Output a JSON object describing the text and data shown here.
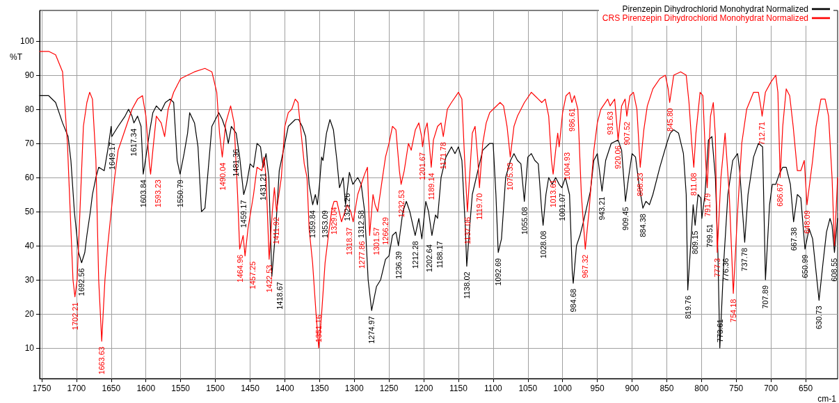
{
  "chart_data": {
    "type": "line",
    "xlabel": "cm-1",
    "ylabel": "%T",
    "legend": "top right",
    "grid": true,
    "marker": "none",
    "line_style": "solid",
    "xlim": [
      1753,
      604
    ],
    "ylim": [
      1,
      109
    ],
    "xticks": [
      1750,
      1700,
      1650,
      1600,
      1550,
      1500,
      1450,
      1400,
      1350,
      1300,
      1250,
      1200,
      1150,
      1100,
      1050,
      1000,
      950,
      900,
      850,
      800,
      750,
      700,
      650
    ],
    "yticks": [
      10,
      20,
      30,
      40,
      50,
      60,
      70,
      80,
      90,
      100
    ],
    "series": [
      {
        "name": "Pirenzepin Dihydrochlorid Monohydrat Normalized",
        "color": "#000000",
        "x": [
          1753,
          1740,
          1730,
          1720,
          1712,
          1708,
          1703,
          1700,
          1697,
          1692.56,
          1688,
          1685,
          1680,
          1677,
          1672,
          1668,
          1660,
          1655,
          1650,
          1649.17,
          1640,
          1630,
          1625,
          1620,
          1617.34,
          1612,
          1607,
          1603.84,
          1600,
          1595,
          1590,
          1585,
          1578,
          1572,
          1565,
          1560,
          1555,
          1550.79,
          1545,
          1540,
          1537,
          1530,
          1525,
          1520,
          1515,
          1510,
          1505,
          1495,
          1490,
          1485,
          1481.36,
          1477,
          1470,
          1465,
          1459.17,
          1455,
          1450,
          1445,
          1440,
          1435,
          1431.21,
          1427,
          1423,
          1418.67,
          1413,
          1408,
          1400,
          1395,
          1385,
          1380,
          1375,
          1370,
          1365,
          1359.84,
          1356,
          1353.09,
          1350,
          1347,
          1345,
          1340,
          1335,
          1330,
          1325,
          1321.26,
          1316,
          1312.58,
          1307,
          1302,
          1295,
          1290,
          1285,
          1280,
          1274.97,
          1268,
          1262,
          1255,
          1250,
          1245,
          1240,
          1236.39,
          1230,
          1225,
          1220,
          1212.28,
          1207,
          1202.64,
          1197,
          1193,
          1188.17,
          1183,
          1180,
          1175,
          1168,
          1160,
          1155,
          1150,
          1145,
          1140,
          1138.02,
          1134,
          1130,
          1122,
          1115,
          1105,
          1100,
          1096,
          1092.69,
          1088,
          1082,
          1075,
          1070,
          1065,
          1060,
          1055.08,
          1050,
          1045,
          1040,
          1035,
          1030,
          1028.08,
          1024,
          1020,
          1015,
          1010,
          1005,
          1001.07,
          996,
          990,
          986,
          984.68,
          980,
          975,
          970,
          960,
          955,
          950,
          943.21,
          938,
          930,
          920,
          915,
          909.45,
          905,
          900,
          895,
          890,
          884.38,
          880,
          875,
          870,
          860,
          850,
          845,
          840,
          833,
          826,
          822,
          819.76,
          815,
          812,
          809.15,
          805,
          801,
          799.51,
          795,
          790,
          785,
          780,
          776.36,
          773.61,
          768,
          762,
          755,
          748,
          745,
          737.78,
          733,
          725,
          718,
          712,
          707.89,
          702,
          698,
          693,
          688,
          683,
          678,
          672,
          667.38,
          662,
          657,
          650.99,
          645,
          640,
          630.73,
          625,
          620,
          615,
          612,
          608.55,
          604
        ],
        "values": [
          84,
          84,
          82,
          76,
          72,
          65,
          50,
          44,
          38,
          35,
          38,
          43,
          50,
          55,
          60,
          63,
          62,
          68,
          75,
          72,
          75,
          78,
          80,
          78,
          76,
          78,
          75,
          61,
          66,
          73,
          79,
          81,
          79.5,
          82,
          83,
          82,
          65,
          61,
          67,
          73,
          79,
          76,
          69,
          50,
          51,
          63,
          75,
          79,
          77,
          74,
          70,
          75,
          73,
          66,
          55,
          58,
          64,
          63,
          70,
          69,
          63,
          67,
          60,
          31,
          45,
          62,
          70,
          75,
          77,
          77,
          75,
          72,
          58,
          52,
          55,
          52,
          58,
          66,
          65,
          73,
          77,
          74,
          65,
          57,
          60,
          52,
          61.5,
          58,
          60,
          58,
          50,
          30,
          21,
          28,
          30,
          36,
          37,
          43,
          44,
          40,
          50,
          53,
          50,
          43,
          48,
          42,
          53,
          50,
          43,
          49,
          48,
          60,
          66,
          69,
          67,
          69,
          65,
          45,
          34,
          45,
          55,
          62,
          68,
          70,
          70,
          55,
          38,
          42,
          60,
          65,
          67,
          65,
          64,
          53,
          66,
          67,
          65,
          64,
          50,
          46,
          55,
          60,
          58,
          60,
          58,
          57,
          60,
          55,
          32,
          29,
          40,
          43,
          47,
          56,
          65,
          67,
          56,
          65,
          70,
          71,
          68,
          53,
          60,
          67,
          66,
          58,
          51,
          53,
          52,
          55,
          63,
          70,
          73,
          74,
          73,
          67,
          55,
          27,
          42,
          52,
          46,
          55,
          54,
          48,
          55,
          71,
          72,
          60,
          38,
          10,
          35,
          55,
          65,
          67,
          62,
          41,
          55,
          66,
          70,
          69,
          30,
          52,
          58,
          58,
          61,
          63,
          63,
          58,
          47,
          55,
          54,
          39,
          45,
          42,
          24,
          35,
          44,
          48,
          46,
          38,
          48
        ]
      },
      {
        "name": "CRS Pirenzepin Dihydrochlorid Monohydrat Normalized",
        "color": "#ff0000",
        "x": [
          1753,
          1740,
          1730,
          1720,
          1713,
          1708,
          1705,
          1702.21,
          1699,
          1695,
          1690,
          1685,
          1681,
          1677,
          1672,
          1668,
          1663.63,
          1659,
          1655,
          1650,
          1645,
          1640,
          1630,
          1620,
          1612,
          1605,
          1600,
          1595,
          1593.23,
          1590,
          1585,
          1578,
          1573,
          1568,
          1560,
          1550,
          1540,
          1530,
          1515,
          1505,
          1498,
          1494,
          1490.04,
          1485,
          1478,
          1473,
          1468,
          1464.96,
          1460,
          1457.25,
          1453,
          1445,
          1440,
          1433,
          1430,
          1427,
          1422.53,
          1418,
          1415,
          1411.92,
          1405,
          1400,
          1395,
          1390,
          1385,
          1381,
          1375,
          1372,
          1368,
          1365,
          1360,
          1355,
          1351.16,
          1347,
          1342,
          1336,
          1332,
          1329.04,
          1325,
          1318.37,
          1310,
          1305,
          1301.57,
          1295,
          1285,
          1281,
          1277.86,
          1273,
          1270,
          1266.29,
          1260,
          1255,
          1250,
          1245,
          1240,
          1235,
          1232.53,
          1228,
          1222,
          1218,
          1212,
          1207,
          1203,
          1201.67,
          1198,
          1195,
          1192,
          1189.14,
          1186,
          1180,
          1175,
          1171.78,
          1166,
          1160,
          1150,
          1145,
          1141,
          1137.06,
          1134,
          1130,
          1126,
          1122,
          1119.7,
          1115,
          1110,
          1105,
          1100,
          1090,
          1085,
          1080,
          1075.33,
          1070,
          1065,
          1055,
          1045,
          1040,
          1035,
          1030,
          1025,
          1020,
          1016,
          1013.61,
          1010,
          1007,
          1004.93,
          1000,
          995,
          990,
          986.61,
          983,
          978,
          973,
          967.32,
          962,
          955,
          950,
          945,
          935,
          931.63,
          925,
          920.06,
          915,
          910,
          907.52,
          903,
          898,
          893,
          888.23,
          883,
          878,
          870,
          860,
          852,
          848,
          845.8,
          840,
          830,
          822,
          818,
          814,
          811.08,
          808,
          802,
          798,
          794,
          791.79,
          787,
          783,
          780,
          777.3,
          772,
          766,
          760,
          754.18,
          748,
          742,
          735,
          725,
          718,
          714,
          712.71,
          708,
          700,
          693,
          690,
          686.67,
          683,
          678,
          673,
          668,
          662,
          657,
          652,
          648.09,
          645,
          640,
          635,
          628,
          622,
          617,
          612,
          608.55,
          604
        ],
        "values": [
          97,
          97,
          96,
          91,
          70,
          45,
          30,
          25,
          30,
          50,
          75,
          82,
          85,
          83,
          65,
          30,
          12,
          30,
          40,
          50,
          60,
          68,
          74,
          80,
          83,
          84,
          78,
          64,
          61,
          68,
          78,
          76,
          72,
          80,
          85,
          89,
          90,
          91,
          92,
          91,
          85,
          73,
          66,
          76,
          81,
          76,
          55,
          39,
          43,
          37,
          45,
          55,
          63,
          62,
          66,
          60,
          36,
          50,
          57,
          50,
          60,
          75,
          79,
          80,
          83,
          82,
          70,
          64,
          60,
          45,
          35,
          20,
          10,
          20,
          35,
          45,
          51,
          53,
          53,
          47,
          52,
          50,
          47,
          55,
          61,
          63,
          43,
          55,
          52,
          50,
          59,
          66,
          70,
          75,
          74,
          62,
          58,
          62,
          70,
          68,
          74,
          76,
          72,
          69,
          74,
          76,
          70,
          63,
          71,
          75,
          76,
          72,
          80,
          82,
          85,
          83,
          65,
          50,
          60,
          73,
          75,
          65,
          57,
          70,
          76,
          79,
          80,
          82,
          81,
          75,
          66,
          75,
          78,
          82,
          85,
          84,
          83,
          82,
          83,
          78,
          65,
          61,
          68,
          73,
          69,
          79,
          84,
          85,
          82,
          84,
          80,
          55,
          39,
          50,
          68,
          76,
          80,
          83,
          81,
          83,
          71,
          81,
          83,
          78,
          84,
          85,
          80,
          63,
          74,
          81,
          86,
          89,
          90,
          86,
          82,
          90,
          91,
          90,
          82,
          70,
          63,
          73,
          85,
          84,
          65,
          57,
          78,
          82,
          72,
          38,
          60,
          73,
          55,
          26,
          50,
          70,
          80,
          85,
          85,
          80,
          78,
          85,
          88,
          90,
          85,
          60,
          75,
          86,
          84,
          75,
          62,
          62,
          65,
          52,
          57,
          65,
          75,
          83,
          83,
          78,
          60,
          40,
          60
        ]
      }
    ],
    "annotations": [
      {
        "text": "1702.21",
        "x": 1702.21,
        "y": 25
      },
      {
        "text": "1692.56",
        "x": 1692.56,
        "y": 35
      },
      {
        "text": "1663.63",
        "x": 1663.63,
        "y": 12
      },
      {
        "text": "1649.17",
        "x": 1649.17,
        "y": 72
      },
      {
        "text": "1617.34",
        "x": 1617.34,
        "y": 76
      },
      {
        "text": "1603.84",
        "x": 1603.84,
        "y": 61
      },
      {
        "text": "1593.23",
        "x": 1593.23,
        "y": 61
      },
      {
        "text": "1550.79",
        "x": 1550.79,
        "y": 61
      },
      {
        "text": "1490.04",
        "x": 1490.04,
        "y": 66
      },
      {
        "text": "1481.36",
        "x": 1481.36,
        "y": 70
      },
      {
        "text": "1464.96",
        "x": 1464.96,
        "y": 39
      },
      {
        "text": "1459.17",
        "x": 1459.17,
        "y": 55
      },
      {
        "text": "1457.25",
        "x": 1457.25,
        "y": 37
      },
      {
        "text": "1431.21",
        "x": 1431.21,
        "y": 63
      },
      {
        "text": "1422.53",
        "x": 1422.53,
        "y": 36
      },
      {
        "text": "1418.67",
        "x": 1418.67,
        "y": 31
      },
      {
        "text": "1411.92",
        "x": 1411.92,
        "y": 50
      },
      {
        "text": "1359.84",
        "x": 1359.84,
        "y": 52
      },
      {
        "text": "1353.09",
        "x": 1353.09,
        "y": 52
      },
      {
        "text": "1351.16",
        "x": 1351.16,
        "y": 10
      },
      {
        "text": "1329.04",
        "x": 1329.04,
        "y": 53
      },
      {
        "text": "1321.26",
        "x": 1321.26,
        "y": 57
      },
      {
        "text": "1318.37",
        "x": 1318.37,
        "y": 47
      },
      {
        "text": "1312.58",
        "x": 1312.58,
        "y": 52
      },
      {
        "text": "1301.57",
        "x": 1301.57,
        "y": 47
      },
      {
        "text": "1277.86",
        "x": 1277.86,
        "y": 43
      },
      {
        "text": "1274.97",
        "x": 1274.97,
        "y": 21
      },
      {
        "text": "1266.29",
        "x": 1266.29,
        "y": 50
      },
      {
        "text": "1236.39",
        "x": 1236.39,
        "y": 40
      },
      {
        "text": "1232.53",
        "x": 1232.53,
        "y": 58
      },
      {
        "text": "1212.28",
        "x": 1212.28,
        "y": 43
      },
      {
        "text": "1202.64",
        "x": 1202.64,
        "y": 42
      },
      {
        "text": "1201.67",
        "x": 1201.67,
        "y": 69
      },
      {
        "text": "1189.14",
        "x": 1189.14,
        "y": 63
      },
      {
        "text": "1188.17",
        "x": 1188.17,
        "y": 43
      },
      {
        "text": "1171.78",
        "x": 1171.78,
        "y": 72
      },
      {
        "text": "1138.02",
        "x": 1138.02,
        "y": 34
      },
      {
        "text": "1137.06",
        "x": 1137.06,
        "y": 50
      },
      {
        "text": "1119.70",
        "x": 1119.7,
        "y": 57
      },
      {
        "text": "1092.69",
        "x": 1092.69,
        "y": 38
      },
      {
        "text": "1075.33",
        "x": 1075.33,
        "y": 66
      },
      {
        "text": "1055.08",
        "x": 1055.08,
        "y": 53
      },
      {
        "text": "1028.08",
        "x": 1028.08,
        "y": 46
      },
      {
        "text": "1013.61",
        "x": 1013.61,
        "y": 61
      },
      {
        "text": "1004.93",
        "x": 1004.93,
        "y": 69
      },
      {
        "text": "1001.07",
        "x": 1001.07,
        "y": 57
      },
      {
        "text": "986.61",
        "x": 986.61,
        "y": 82
      },
      {
        "text": "984.68",
        "x": 984.68,
        "y": 29
      },
      {
        "text": "967.32",
        "x": 967.32,
        "y": 39
      },
      {
        "text": "943.21",
        "x": 943.21,
        "y": 56
      },
      {
        "text": "931.63",
        "x": 931.63,
        "y": 81
      },
      {
        "text": "920.06",
        "x": 920.06,
        "y": 71
      },
      {
        "text": "909.45",
        "x": 909.45,
        "y": 53
      },
      {
        "text": "907.52",
        "x": 907.52,
        "y": 78
      },
      {
        "text": "888.23",
        "x": 888.23,
        "y": 63
      },
      {
        "text": "884.38",
        "x": 884.38,
        "y": 51
      },
      {
        "text": "845.80",
        "x": 845.8,
        "y": 82
      },
      {
        "text": "819.76",
        "x": 819.76,
        "y": 27
      },
      {
        "text": "811.08",
        "x": 811.08,
        "y": 63
      },
      {
        "text": "809.15",
        "x": 809.15,
        "y": 46
      },
      {
        "text": "799.51",
        "x": 799.51,
        "y": 48
      },
      {
        "text": "791.79",
        "x": 791.79,
        "y": 57
      },
      {
        "text": "777.3",
        "x": 777.3,
        "y": 38
      },
      {
        "text": "776.36",
        "x": 776.36,
        "y": 38
      },
      {
        "text": "773.61",
        "x": 773.61,
        "y": 10
      },
      {
        "text": "754.18",
        "x": 754.18,
        "y": 26
      },
      {
        "text": "737.78",
        "x": 737.78,
        "y": 41
      },
      {
        "text": "712.71",
        "x": 712.71,
        "y": 78
      },
      {
        "text": "707.89",
        "x": 707.89,
        "y": 30
      },
      {
        "text": "686.67",
        "x": 686.67,
        "y": 60
      },
      {
        "text": "667.38",
        "x": 667.38,
        "y": 47
      },
      {
        "text": "650.99",
        "x": 650.99,
        "y": 39
      },
      {
        "text": "648.09",
        "x": 648.09,
        "y": 52
      },
      {
        "text": "630.73",
        "x": 630.73,
        "y": 24
      },
      {
        "text": "608.55",
        "x": 608.55,
        "y": 38
      }
    ]
  }
}
